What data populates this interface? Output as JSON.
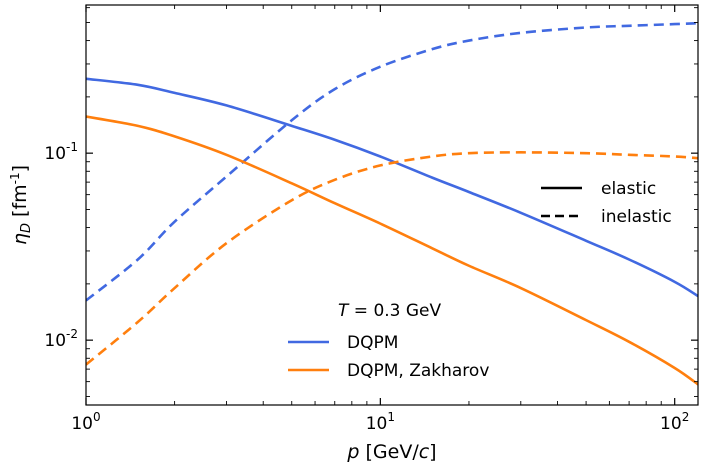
{
  "chart_data": {
    "type": "line",
    "title": "",
    "xscale": "log",
    "yscale": "log",
    "xlim": [
      1,
      120
    ],
    "ylim": [
      0.0045,
      0.62
    ],
    "xlabel": {
      "italic": "p",
      "rest": " [GeV/",
      "italic2": "c",
      "end": "]"
    },
    "ylabel": {
      "italic": "η",
      "sub": "D",
      "rest": " [fm",
      "sup": "-1",
      "end": "]"
    },
    "xticks": [
      {
        "value": 1,
        "base": "10",
        "exp": "0"
      },
      {
        "value": 10,
        "base": "10",
        "exp": "1"
      },
      {
        "value": 100,
        "base": "10",
        "exp": "2"
      }
    ],
    "yticks": [
      {
        "value": 0.01,
        "base": "10",
        "exp": "-2"
      },
      {
        "value": 0.1,
        "base": "10",
        "exp": "-1"
      }
    ],
    "x": [
      1,
      1.5,
      2,
      3,
      5,
      7,
      10,
      15,
      20,
      30,
      50,
      70,
      100,
      120
    ],
    "series": [
      {
        "name": "DQPM elastic",
        "color": "#4169e1",
        "style": "solid",
        "values": [
          0.25,
          0.232,
          0.21,
          0.18,
          0.14,
          0.118,
          0.096,
          0.074,
          0.062,
          0.048,
          0.034,
          0.027,
          0.0205,
          0.0172
        ]
      },
      {
        "name": "DQPM inelastic",
        "color": "#4169e1",
        "style": "dashed",
        "values": [
          0.0163,
          0.027,
          0.043,
          0.075,
          0.15,
          0.22,
          0.29,
          0.36,
          0.4,
          0.44,
          0.47,
          0.48,
          0.49,
          0.495
        ]
      },
      {
        "name": "DQPM, Zakharov elastic",
        "color": "#ff7f0e",
        "style": "solid",
        "values": [
          0.157,
          0.14,
          0.123,
          0.098,
          0.069,
          0.054,
          0.042,
          0.031,
          0.025,
          0.019,
          0.0128,
          0.0098,
          0.0071,
          0.0058
        ]
      },
      {
        "name": "DQPM, Zakharov inelastic",
        "color": "#ff7f0e",
        "style": "dashed",
        "values": [
          0.0074,
          0.0125,
          0.019,
          0.033,
          0.056,
          0.072,
          0.086,
          0.096,
          0.1,
          0.101,
          0.1,
          0.098,
          0.096,
          0.094
        ]
      }
    ],
    "legend_style": {
      "position": "right",
      "entries": [
        {
          "label": "elastic",
          "style": "solid"
        },
        {
          "label": "inelastic",
          "style": "dashed"
        }
      ]
    },
    "legend_model": {
      "position": "bottom-center",
      "title": {
        "italic": "T",
        "rest": " = 0.3 GeV"
      },
      "entries": [
        {
          "label": "DQPM",
          "color": "#4169e1"
        },
        {
          "label": "DQPM, Zakharov",
          "color": "#ff7f0e"
        }
      ]
    }
  }
}
